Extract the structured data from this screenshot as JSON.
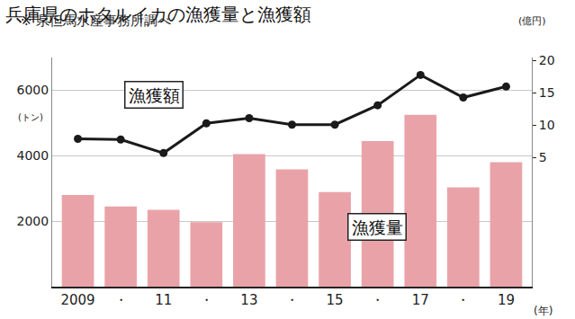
{
  "chart_data": {
    "type": "bar",
    "title": "兵庫県のホタルイカの漁獲量と漁獲額",
    "subtitle": "※ 県但馬水産事務所調べ",
    "x_label": "(年)",
    "y_label": "(トン)",
    "y2_label": "(億円)",
    "categories": [
      "2009",
      "・",
      "11",
      "・",
      "13",
      "・",
      "15",
      "・",
      "17",
      "・",
      "19"
    ],
    "series": [
      {
        "name": "漁獲量",
        "type": "bar",
        "color": "#e9a3a8",
        "axis": "y",
        "values": [
          2800,
          2450,
          2350,
          1970,
          4050,
          3580,
          2890,
          4450,
          5250,
          3030,
          3800
        ]
      },
      {
        "name": "漁獲額",
        "type": "line",
        "color": "#1a1a1a",
        "axis": "y2",
        "marker": "circle",
        "line_style": "solid",
        "values": [
          7.9,
          7.8,
          5.7,
          10.3,
          11.1,
          10.1,
          10.1,
          13.1,
          17.8,
          14.3,
          16.0
        ]
      }
    ],
    "ylim": [
      0,
      7000
    ],
    "yticks": [
      2000,
      4000,
      6000
    ],
    "y2lim": [
      -15,
      20.5
    ],
    "y2ticks": [
      5,
      10,
      15,
      20
    ],
    "grid": true
  }
}
